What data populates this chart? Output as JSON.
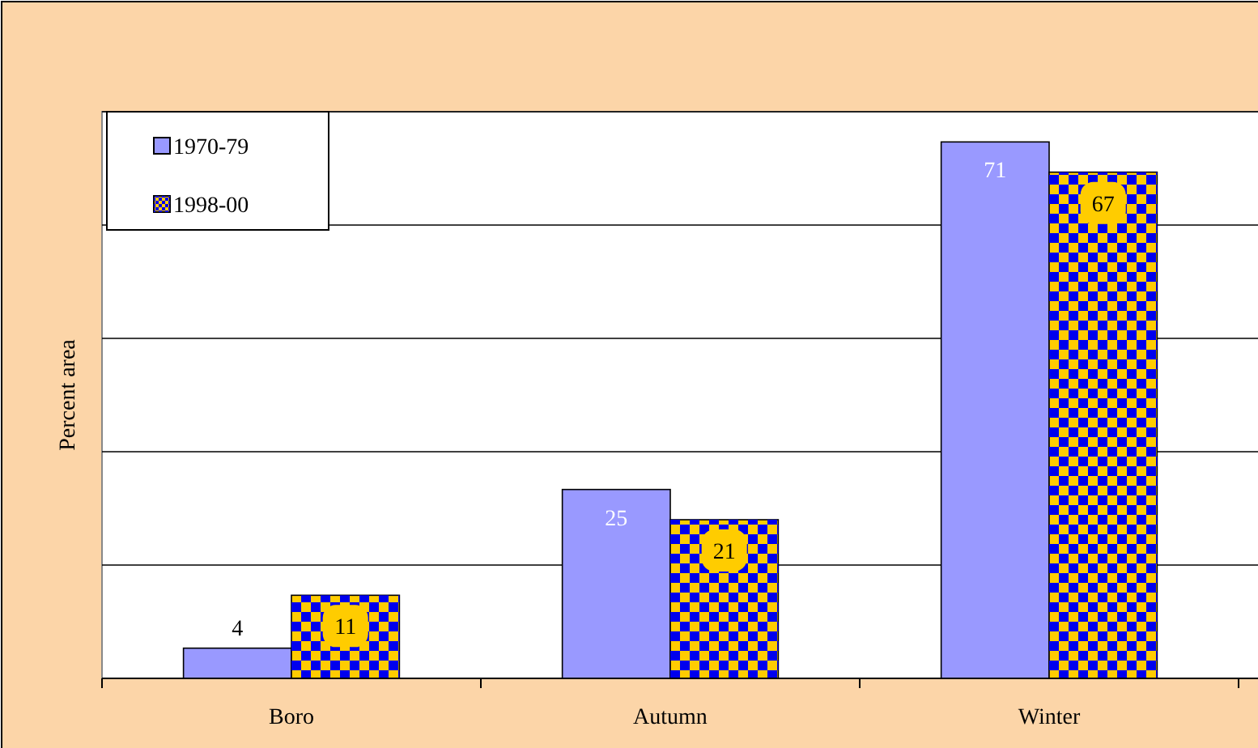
{
  "chart_data": {
    "type": "bar",
    "ylabel": "Percent area",
    "categories": [
      "Boro",
      "Autumn",
      "Winter"
    ],
    "series": [
      {
        "name": "1970-79",
        "color": "#9999ff",
        "values": [
          4,
          25,
          71
        ]
      },
      {
        "name": "1998-00",
        "color": "#ffcc00",
        "values": [
          11,
          21,
          67
        ]
      }
    ],
    "ylim": [
      0,
      75
    ],
    "yticks": [
      {
        "value": 0,
        "label": null
      },
      {
        "value": 15,
        "label": null
      },
      {
        "value": 30,
        "label": null
      },
      {
        "value": 45,
        "label": null
      },
      {
        "value": 60,
        "label": null
      },
      {
        "value": 75,
        "label": null
      }
    ],
    "tick_labels": "x",
    "grid": "y",
    "legend": "top left",
    "data_labels": true
  }
}
